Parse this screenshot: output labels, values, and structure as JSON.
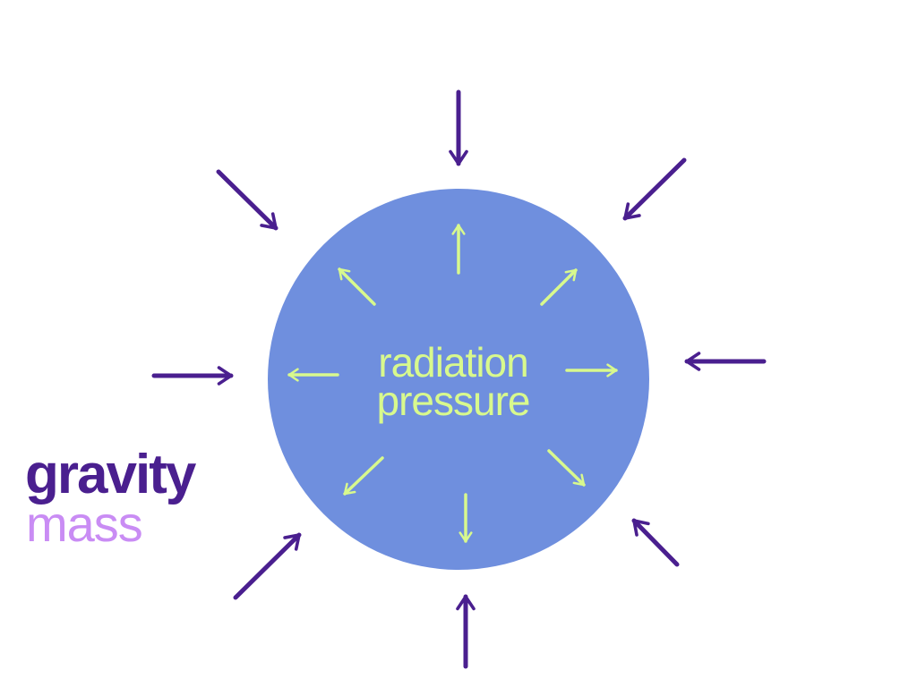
{
  "colors": {
    "background": "#ffffff",
    "star_fill": "#6f8fde",
    "inward_arrow": "#4a1f8f",
    "outward_arrow": "#d8f98d",
    "label_primary": "#4a1f8f",
    "label_secondary": "#c98cf4"
  },
  "center_label": {
    "line1": "radiation",
    "line2": "pressure"
  },
  "legend": {
    "primary": "gravity",
    "secondary": "mass"
  }
}
